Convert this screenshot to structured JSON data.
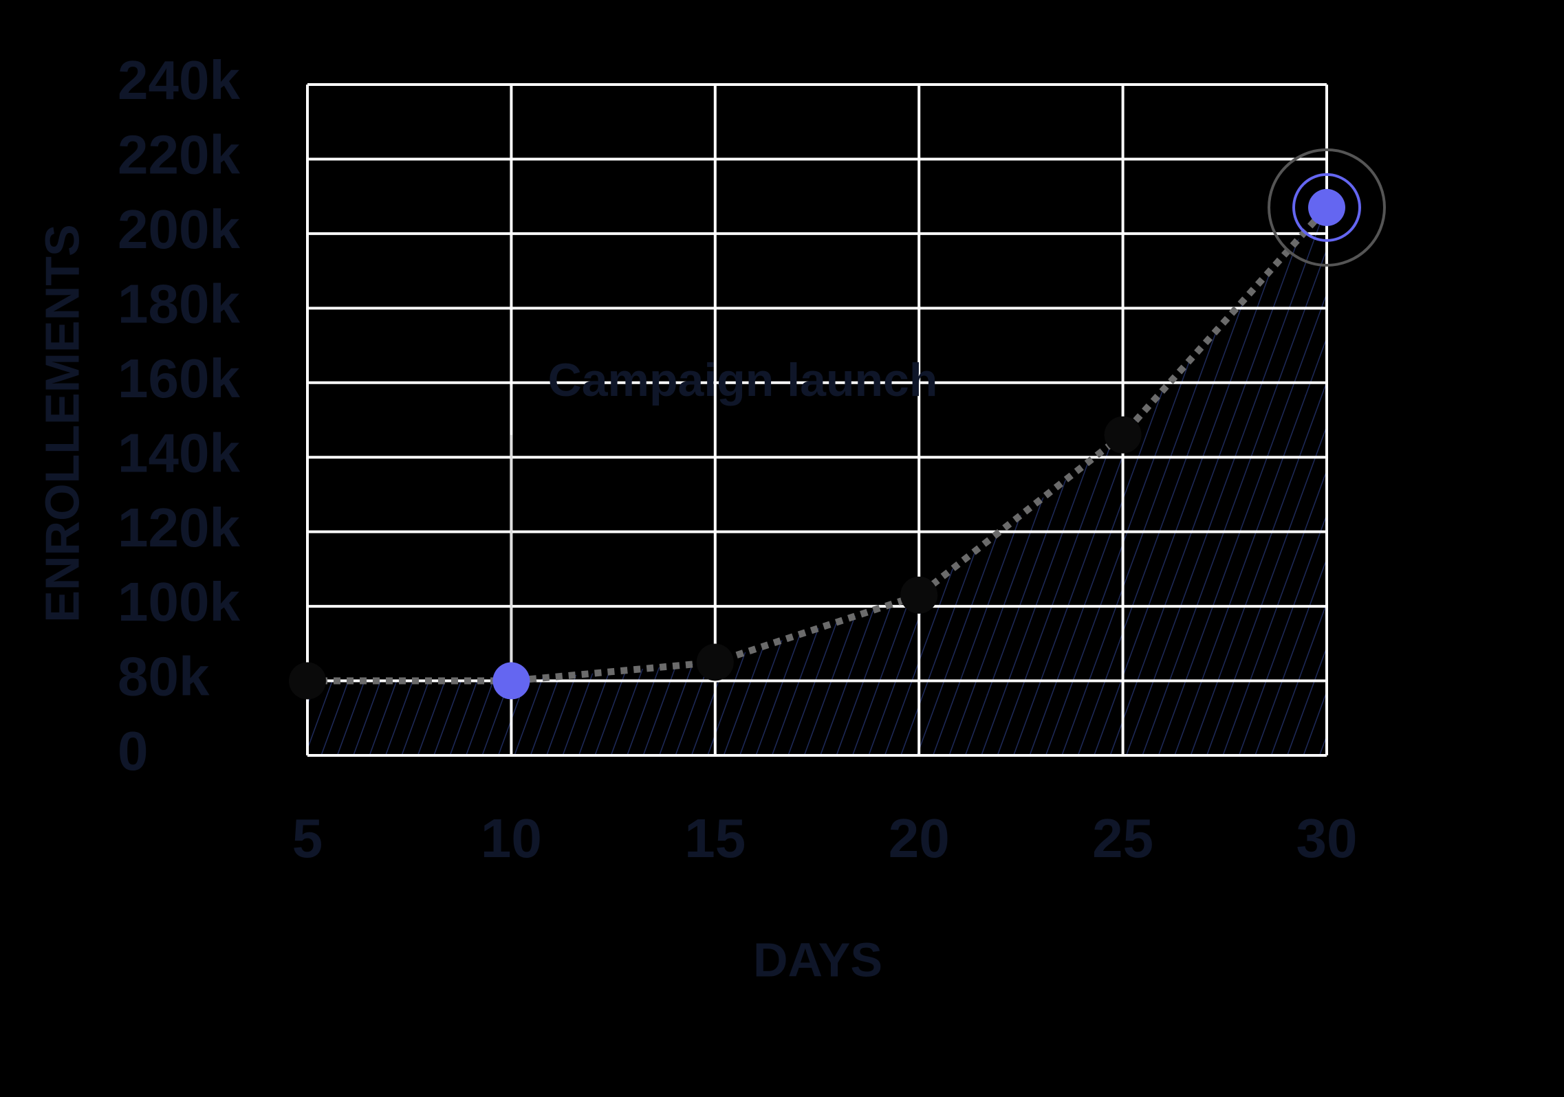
{
  "chart_data": {
    "type": "line",
    "x_label": "DAYS",
    "y_label": "ENROLLEMENTS",
    "x": [
      5,
      10,
      15,
      20,
      25,
      30
    ],
    "values": [
      80000,
      80000,
      85000,
      103000,
      146000,
      207000
    ],
    "color": "#6b6b6b",
    "point_colors": [
      "#0a0a0a",
      "#6466f1",
      "#0a0a0a",
      "#0a0a0a",
      "#0a0a0a",
      "#6466f1"
    ],
    "fill_color": "#1e2a5a",
    "annotation": {
      "text": "Campaign launch",
      "x": 10,
      "y": 146000
    },
    "xlim": [
      5,
      30
    ],
    "xticks": [
      5,
      10,
      15,
      20,
      25,
      30
    ],
    "ylim": [
      0,
      240000
    ],
    "yticks": [
      {
        "value": 0,
        "label": "0"
      },
      {
        "value": 80000,
        "label": "80k"
      },
      {
        "value": 100000,
        "label": "100k"
      },
      {
        "value": 120000,
        "label": "120k"
      },
      {
        "value": 140000,
        "label": "140k"
      },
      {
        "value": 160000,
        "label": "160k"
      },
      {
        "value": 180000,
        "label": "180k"
      },
      {
        "value": 200000,
        "label": "200k"
      },
      {
        "value": 220000,
        "label": "220k"
      },
      {
        "value": 240000,
        "label": "240k"
      }
    ],
    "grid": true
  }
}
